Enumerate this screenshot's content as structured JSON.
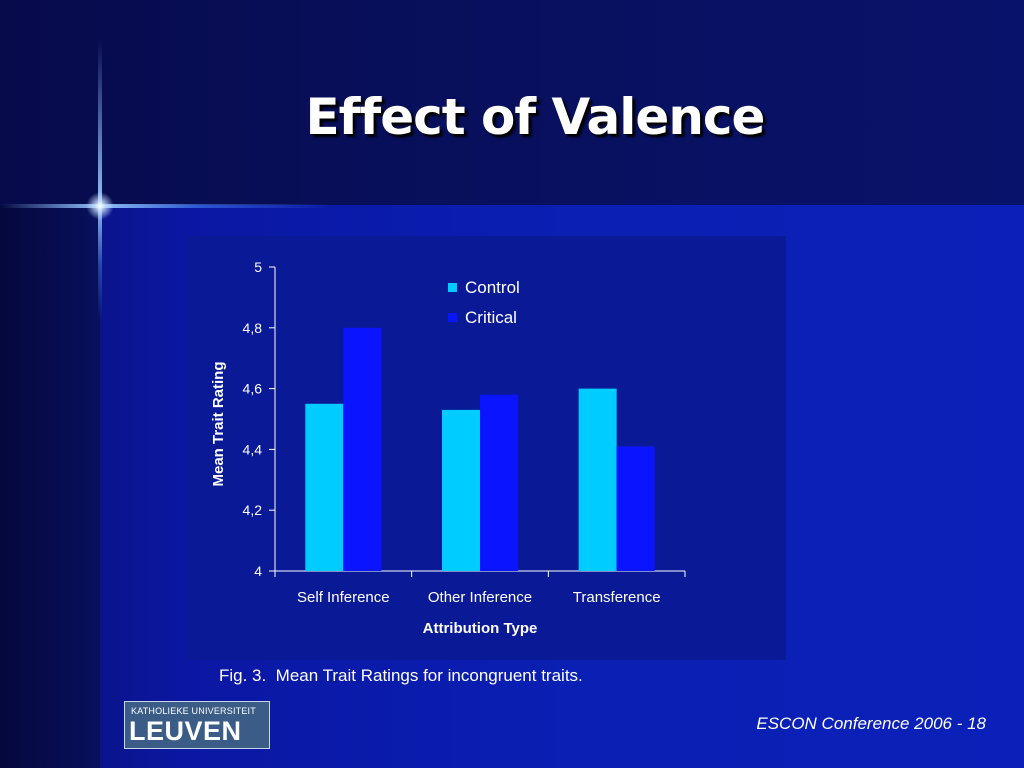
{
  "slide": {
    "title": "Effect of Valence",
    "caption": "Fig. 3.  Mean Trait Ratings for incongruent traits.",
    "footer": "ESCON Conference 2006 - 18",
    "logo": {
      "top": "KATHOLIEKE UNIVERSITEIT",
      "bottom": "LEUVEN"
    }
  },
  "chart_data": {
    "type": "bar",
    "categories": [
      "Self Inference",
      "Other Inference",
      "Transference"
    ],
    "series": [
      {
        "name": "Control",
        "values": [
          4.55,
          4.53,
          4.6
        ],
        "color": "#00ccff"
      },
      {
        "name": "Critical",
        "values": [
          4.8,
          4.58,
          4.41
        ],
        "color": "#0a14ff"
      }
    ],
    "xlabel": "Attribution Type",
    "ylabel": "Mean Trait Rating",
    "ylim": [
      4,
      5
    ],
    "yticks": [
      4,
      4.2,
      4.4,
      4.6,
      4.8,
      5
    ],
    "ytick_labels": [
      "4",
      "4,2",
      "4,4",
      "4,6",
      "4,8",
      "5"
    ],
    "grid": false,
    "legend_position": "top-center"
  }
}
